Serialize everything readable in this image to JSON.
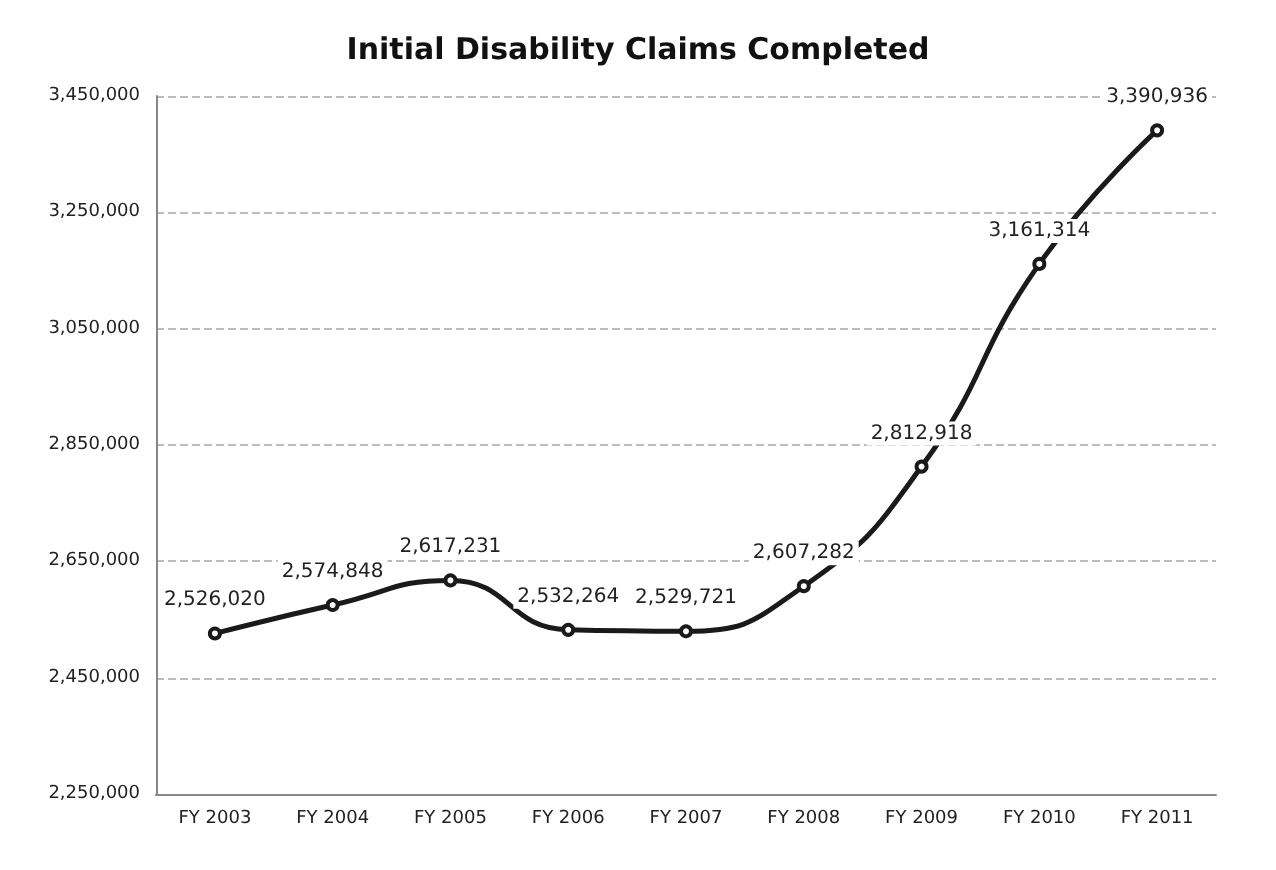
{
  "chart_data": {
    "type": "line",
    "title": "Initial Disability Claims Completed",
    "categories": [
      "FY 2003",
      "FY 2004",
      "FY 2005",
      "FY 2006",
      "FY 2007",
      "FY 2008",
      "FY 2009",
      "FY 2010",
      "FY 2011"
    ],
    "series": [
      {
        "color": "#1a1a1a",
        "values": [
          2526020,
          2574848,
          2617231,
          2532264,
          2529721,
          2607282,
          2812918,
          3161314,
          3390936
        ],
        "value_labels": [
          "2,526,020",
          "2,574,848",
          "2,617,231",
          "2,532,264",
          "2,529,721",
          "2,607,282",
          "2,812,918",
          "3,161,314",
          "3,390,936"
        ]
      }
    ],
    "ylim": [
      2250000,
      3450000
    ],
    "yticks": [
      {
        "value": 2250000,
        "label": "2,250,000"
      },
      {
        "value": 2450000,
        "label": "2,450,000"
      },
      {
        "value": 2650000,
        "label": "2,650,000"
      },
      {
        "value": 2850000,
        "label": "2,850,000"
      },
      {
        "value": 3050000,
        "label": "3,050,000"
      },
      {
        "value": 3250000,
        "label": "3,250,000"
      },
      {
        "value": 3450000,
        "label": "3,450,000"
      }
    ],
    "grid": "y",
    "marker": "circle",
    "line_style": "solid"
  }
}
